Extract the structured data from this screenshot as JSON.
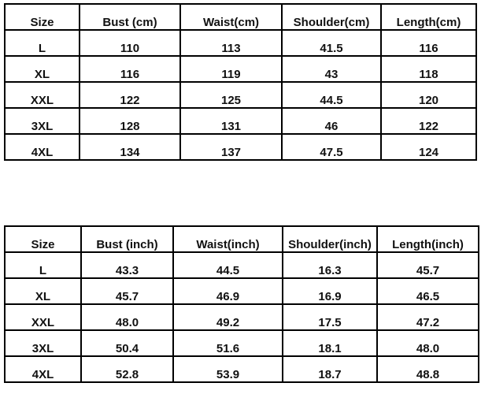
{
  "cm_table": {
    "headers": [
      "Size",
      "Bust (cm)",
      "Waist(cm)",
      "Shoulder(cm)",
      "Length(cm)"
    ],
    "rows": [
      [
        "L",
        "110",
        "113",
        "41.5",
        "116"
      ],
      [
        "XL",
        "116",
        "119",
        "43",
        "118"
      ],
      [
        "XXL",
        "122",
        "125",
        "44.5",
        "120"
      ],
      [
        "3XL",
        "128",
        "131",
        "46",
        "122"
      ],
      [
        "4XL",
        "134",
        "137",
        "47.5",
        "124"
      ]
    ]
  },
  "inch_table": {
    "headers": [
      "Size",
      "Bust (inch)",
      "Waist(inch)",
      "Shoulder(inch)",
      "Length(inch)"
    ],
    "rows": [
      [
        "L",
        "43.3",
        "44.5",
        "16.3",
        "45.7"
      ],
      [
        "XL",
        "45.7",
        "46.9",
        "16.9",
        "46.5"
      ],
      [
        "XXL",
        "48.0",
        "49.2",
        "17.5",
        "47.2"
      ],
      [
        "3XL",
        "50.4",
        "51.6",
        "18.1",
        "48.0"
      ],
      [
        "4XL",
        "52.8",
        "53.9",
        "18.7",
        "48.8"
      ]
    ]
  }
}
